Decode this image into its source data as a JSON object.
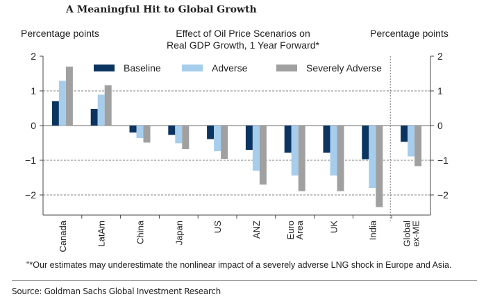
{
  "header": {
    "title": "A Meaningful Hit to Global Growth"
  },
  "chart_data": {
    "type": "bar",
    "title": "Effect of Oil Price Scenarios on Real GDP Growth, 1 Year Forward*",
    "title_lines": [
      "Effect of Oil Price Scenarios on",
      "Real GDP Growth, 1 Year Forward*"
    ],
    "ylabel_left": "Percentage points",
    "ylabel_right": "Percentage points",
    "ylim": [
      -2.5,
      2
    ],
    "yticks": [
      2,
      1,
      0,
      -1,
      -2
    ],
    "ytick_labels": [
      "2",
      "1",
      "0",
      "−1",
      "−2"
    ],
    "grid": "dashed at 1, -1, -2",
    "legend": "top",
    "categories": [
      "Canada",
      "LatAm",
      "China",
      "Japan",
      "US",
      "ANZ",
      "Euro Area",
      "UK",
      "India",
      "Global ex-ME"
    ],
    "category_lines": [
      [
        "Canada"
      ],
      [
        "LatAm"
      ],
      [
        "China"
      ],
      [
        "Japan"
      ],
      [
        "US"
      ],
      [
        "ANZ"
      ],
      [
        "Euro",
        "Area"
      ],
      [
        "UK"
      ],
      [
        "India"
      ],
      [
        "Global",
        "ex-ME"
      ]
    ],
    "series": [
      {
        "name": "Baseline",
        "color": "#0b3560",
        "values": [
          0.7,
          0.48,
          -0.2,
          -0.27,
          -0.39,
          -0.7,
          -0.78,
          -0.78,
          -0.97,
          -0.47
        ]
      },
      {
        "name": "Adverse",
        "color": "#a6cdec",
        "values": [
          1.29,
          0.89,
          -0.36,
          -0.51,
          -0.74,
          -1.3,
          -1.44,
          -1.44,
          -1.8,
          -0.89
        ]
      },
      {
        "name": "Severely Adverse",
        "color": "#a0a0a0",
        "values": [
          1.7,
          1.16,
          -0.49,
          -0.68,
          -0.96,
          -1.7,
          -1.89,
          -1.89,
          -2.35,
          -1.17
        ]
      }
    ]
  },
  "footnote": "\"*Our estimates may underestimate the nonlinear impact of a severely adverse LNG shock in Europe and Asia.",
  "source": "Source: Goldman Sachs Global Investment Research"
}
